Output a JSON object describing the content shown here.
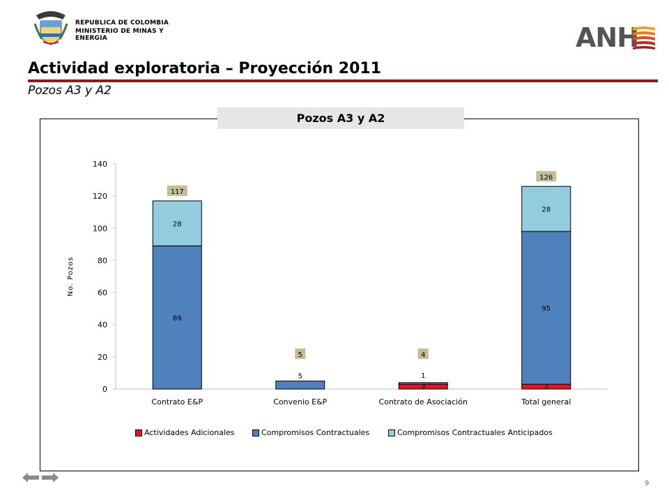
{
  "header": {
    "logo_left_line1": "REPUBLICA DE COLOMBIA",
    "logo_left_line2": "MINISTERIO DE MINAS Y ENERGIA",
    "logo_right_text": "ANH",
    "title": "Actividad exploratoria – Proyección 2011",
    "subtitle": "Pozos A3 y A2"
  },
  "footer": {
    "page_number": "9"
  },
  "colors": {
    "title_rule": "#8b1a1a",
    "actividades": "#e8151a",
    "compromisos": "#4f81bd",
    "anticipados": "#93cddd",
    "total_label_bg": "#c4bd97"
  },
  "icons": {
    "nav_back": "arrow-left-icon",
    "nav_forward": "arrow-right-icon"
  },
  "chart_data": {
    "type": "bar",
    "stacked": true,
    "title": "Pozos  A3 y A2",
    "xlabel": "",
    "ylabel": "No. Pozos",
    "ylim": [
      0,
      140
    ],
    "yticks": [
      0,
      20,
      40,
      60,
      80,
      100,
      120,
      140
    ],
    "grid": false,
    "legend_position": "bottom",
    "categories": [
      "Contrato E&P",
      "Convenio E&P",
      "Contrato de Asociación",
      "Total general"
    ],
    "series": [
      {
        "name": "Actividades Adicionales",
        "color": "#e8151a",
        "values": [
          0,
          0,
          3,
          3
        ]
      },
      {
        "name": "Compromisos Contractuales",
        "color": "#4f81bd",
        "values": [
          89,
          5,
          1,
          95
        ]
      },
      {
        "name": "Compromisos Contractuales Anticipados",
        "color": "#93cddd",
        "values": [
          28,
          0,
          0,
          28
        ]
      }
    ],
    "data_labels": [
      [
        "",
        "",
        "3",
        "3"
      ],
      [
        "89",
        "5",
        "1",
        "95"
      ],
      [
        "28",
        "",
        "",
        "28"
      ]
    ],
    "totals": [
      117,
      5,
      4,
      126
    ]
  }
}
